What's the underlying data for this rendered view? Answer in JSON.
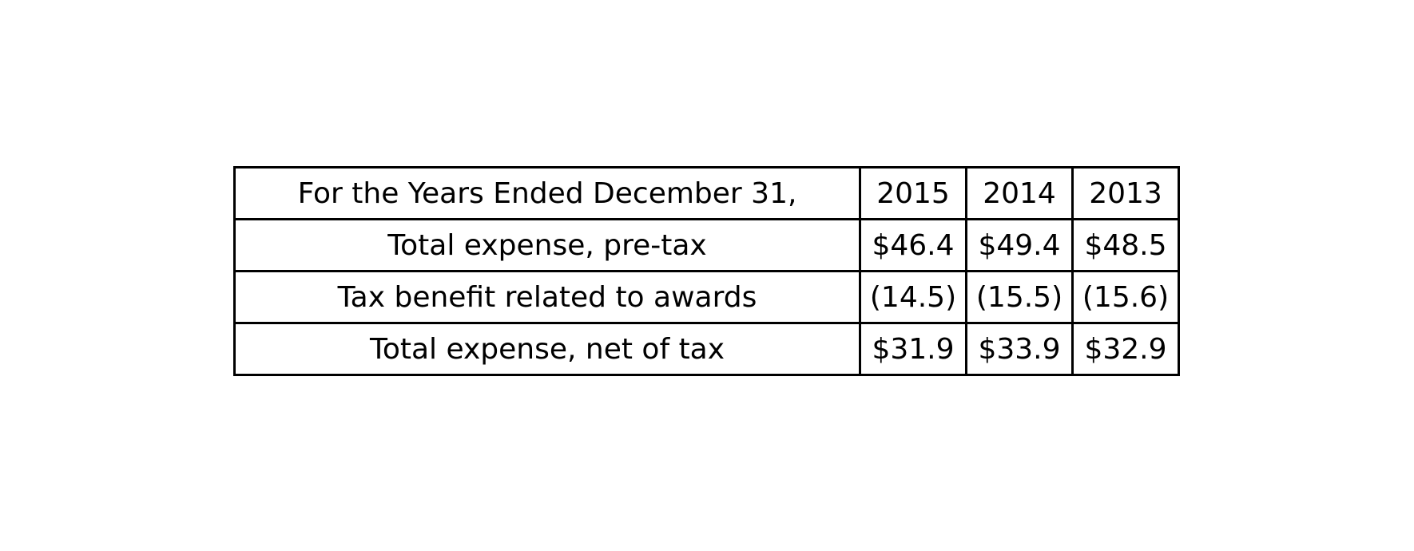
{
  "chart_data": {
    "type": "table",
    "columns": [
      "For the Years Ended December 31,",
      "2015",
      "2014",
      "2013"
    ],
    "rows": [
      [
        "Total expense, pre-tax",
        "$46.4",
        "$49.4",
        "$48.5"
      ],
      [
        "Tax benefit related to awards",
        "(14.5)",
        "(15.5)",
        "(15.6)"
      ],
      [
        "Total expense, net of tax",
        "$31.9",
        "$33.9",
        "$32.9"
      ]
    ]
  },
  "colors": {
    "background": "#ffffff",
    "border": "#000000",
    "text": "#000000"
  }
}
